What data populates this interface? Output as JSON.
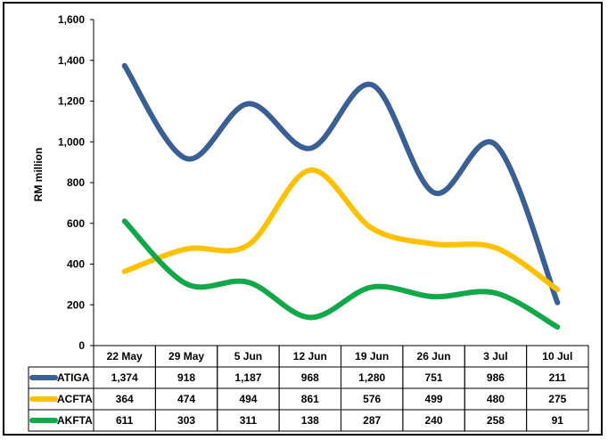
{
  "chart_data": {
    "type": "line",
    "ylabel": "RM million",
    "ylim": [
      0,
      1600
    ],
    "yticks": [
      0,
      200,
      400,
      600,
      800,
      1000,
      1200,
      1400,
      1600
    ],
    "ytick_labels": [
      "0",
      "200",
      "400",
      "600",
      "800",
      "1,000",
      "1,200",
      "1,400",
      "1,600"
    ],
    "categories": [
      "22 May",
      "29 May",
      "5 Jun",
      "12 Jun",
      "19 Jun",
      "26 Jun",
      "3 Jul",
      "10 Jul"
    ],
    "series": [
      {
        "name": "ATIGA",
        "color": "#3A5F95",
        "values": [
          1374,
          918,
          1187,
          968,
          1280,
          751,
          986,
          211
        ],
        "labels": [
          "1,374",
          "918",
          "1,187",
          "968",
          "1,280",
          "751",
          "986",
          "211"
        ]
      },
      {
        "name": "ACFTA",
        "color": "#FFC000",
        "values": [
          364,
          474,
          494,
          861,
          576,
          499,
          480,
          275
        ],
        "labels": [
          "364",
          "474",
          "494",
          "861",
          "576",
          "499",
          "480",
          "275"
        ]
      },
      {
        "name": "AKFTA",
        "color": "#11A84A",
        "values": [
          611,
          303,
          311,
          138,
          287,
          240,
          258,
          91
        ],
        "labels": [
          "611",
          "303",
          "311",
          "138",
          "287",
          "240",
          "258",
          "91"
        ]
      }
    ],
    "legend": "data-table",
    "grid": false
  }
}
